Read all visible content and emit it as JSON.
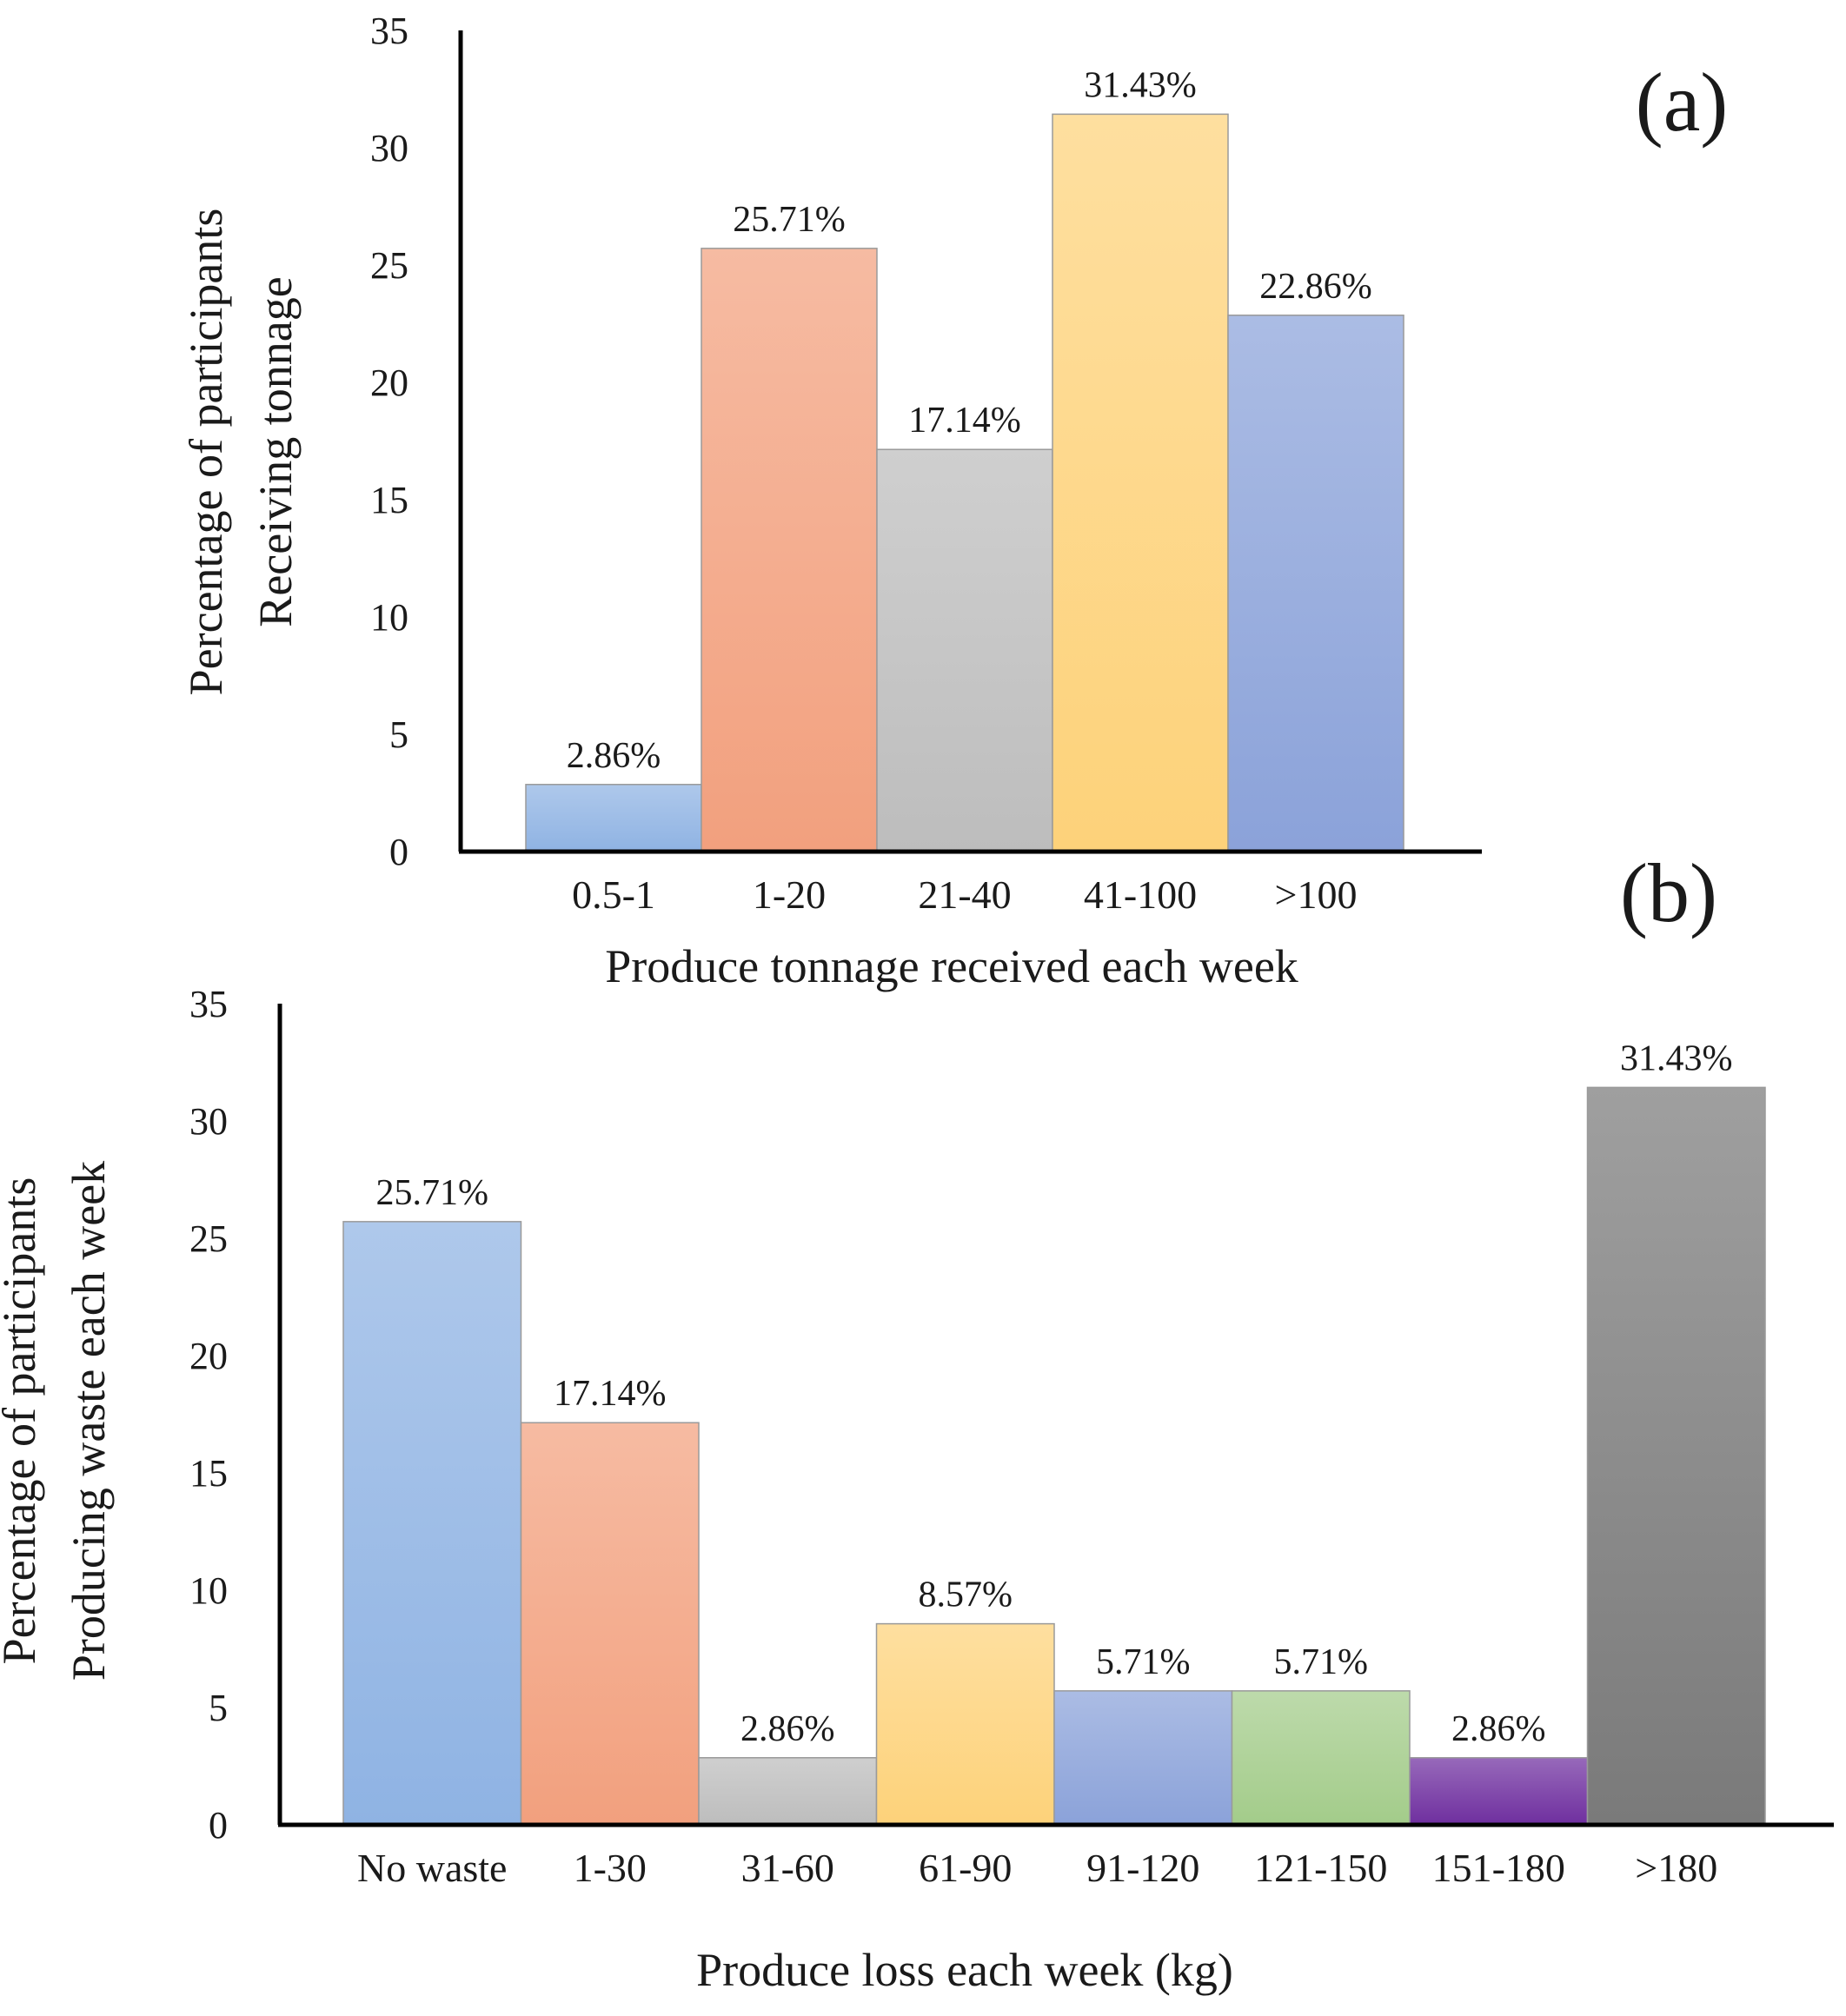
{
  "chart_data": [
    {
      "type": "bar",
      "panel_label": "(a)",
      "categories": [
        "0.5-1",
        "1-20",
        "21-40",
        "41-100",
        ">100"
      ],
      "values": [
        2.86,
        25.71,
        17.14,
        31.43,
        22.86
      ],
      "data_labels": [
        "2.86%",
        "25.71%",
        "17.14%",
        "31.43%",
        "22.86%"
      ],
      "colors": [
        "#8fb3e3",
        "#f2a07e",
        "#bdbdbd",
        "#fdd27a",
        "#8ba2d9"
      ],
      "xlabel": "Produce tonnage received each week",
      "ylabel_lines": [
        "Percentage of participants",
        "Receiving tonnage"
      ],
      "ylim": [
        0,
        35
      ],
      "yticks": [
        "0",
        "5",
        "10",
        "15",
        "20",
        "25",
        "30",
        "35"
      ],
      "grid": false
    },
    {
      "type": "bar",
      "panel_label": "(b)",
      "categories": [
        "No waste",
        "1-30",
        "31-60",
        "61-90",
        "91-120",
        "121-150",
        "151-180",
        ">180"
      ],
      "values": [
        25.71,
        17.14,
        2.86,
        8.57,
        5.71,
        5.71,
        2.86,
        31.43
      ],
      "data_labels": [
        "25.71%",
        "17.14%",
        "2.86%",
        "8.57%",
        "5.71%",
        "5.71%",
        "2.86%",
        "31.43%"
      ],
      "colors": [
        "#8fb3e3",
        "#f2a07e",
        "#bdbdbd",
        "#fdd27a",
        "#8ba2d9",
        "#a3cc8a",
        "#6f2f9f",
        "#7a7a7a"
      ],
      "xlabel": "Produce loss each week (kg)",
      "ylabel_lines": [
        "Percentage of participants",
        "Producing waste each week"
      ],
      "ylim": [
        0,
        35
      ],
      "yticks": [
        "0",
        "5",
        "10",
        "15",
        "20",
        "25",
        "30",
        "35"
      ],
      "grid": false
    }
  ]
}
